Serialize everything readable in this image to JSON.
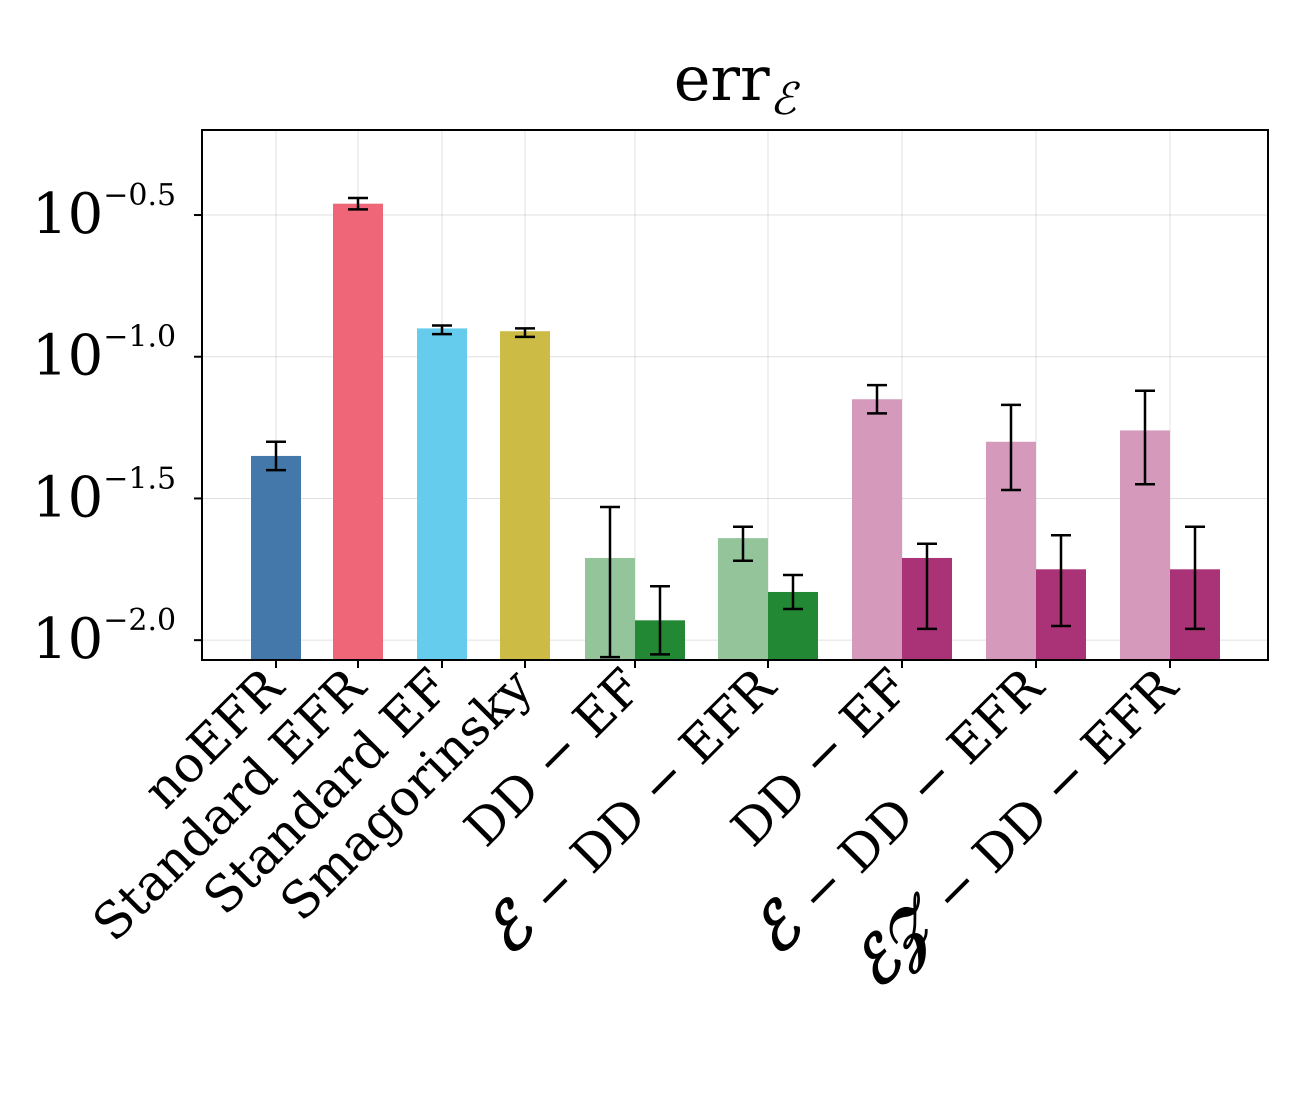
{
  "chart_data": {
    "type": "bar",
    "title": "err",
    "title_subscript": "ℰ",
    "yscale": "log10",
    "ylim_log10": [
      -2.07,
      -0.2
    ],
    "yticks": [
      {
        "exp": -2.0,
        "base": "10",
        "sup": "−2.0"
      },
      {
        "exp": -1.5,
        "base": "10",
        "sup": "−1.5"
      },
      {
        "exp": -1.0,
        "base": "10",
        "sup": "−1.0"
      },
      {
        "exp": -0.5,
        "base": "10",
        "sup": "−0.5"
      }
    ],
    "grid": true,
    "categories": [
      {
        "prefix": "",
        "label": "noEFR"
      },
      {
        "prefix": "",
        "label": "Standard EFR"
      },
      {
        "prefix": "",
        "label": "Standard EF"
      },
      {
        "prefix": "",
        "label": "Smagorinsky"
      },
      {
        "prefix": "",
        "label": "DD − EF"
      },
      {
        "prefix": "ℰ",
        "label": "− DD − EFR"
      },
      {
        "prefix": "",
        "label": "DD − EF"
      },
      {
        "prefix": "ℰ",
        "label": "− DD − EFR"
      },
      {
        "prefix": "ℰ𝒵",
        "label": "− DD − EFR"
      }
    ],
    "bars": [
      {
        "group": 0,
        "slot": "single",
        "log10": -1.35,
        "err_low": -1.4,
        "err_high": -1.3,
        "color": "#4477aa"
      },
      {
        "group": 1,
        "slot": "single",
        "log10": -0.46,
        "err_low": -0.48,
        "err_high": -0.44,
        "color": "#ee6677"
      },
      {
        "group": 2,
        "slot": "single",
        "log10": -0.9,
        "err_low": -0.92,
        "err_high": -0.89,
        "color": "#66ccee"
      },
      {
        "group": 3,
        "slot": "single",
        "log10": -0.91,
        "err_low": -0.93,
        "err_high": -0.9,
        "color": "#ccbb44"
      },
      {
        "group": 4,
        "slot": "left",
        "log10": -1.71,
        "err_low": -2.06,
        "err_high": -1.53,
        "color": "#93c49a"
      },
      {
        "group": 4,
        "slot": "right",
        "log10": -1.93,
        "err_low": -2.05,
        "err_high": -1.81,
        "color": "#228833"
      },
      {
        "group": 5,
        "slot": "left",
        "log10": -1.64,
        "err_low": -1.72,
        "err_high": -1.6,
        "color": "#93c49a"
      },
      {
        "group": 5,
        "slot": "right",
        "log10": -1.83,
        "err_low": -1.89,
        "err_high": -1.77,
        "color": "#228833"
      },
      {
        "group": 6,
        "slot": "left",
        "log10": -1.15,
        "err_low": -1.2,
        "err_high": -1.1,
        "color": "#d499bb"
      },
      {
        "group": 6,
        "slot": "right",
        "log10": -1.71,
        "err_low": -1.96,
        "err_high": -1.66,
        "color": "#aa3377"
      },
      {
        "group": 7,
        "slot": "left",
        "log10": -1.3,
        "err_low": -1.47,
        "err_high": -1.17,
        "color": "#d499bb"
      },
      {
        "group": 7,
        "slot": "right",
        "log10": -1.75,
        "err_low": -1.95,
        "err_high": -1.63,
        "color": "#aa3377"
      },
      {
        "group": 8,
        "slot": "left",
        "log10": -1.26,
        "err_low": -1.45,
        "err_high": -1.12,
        "color": "#d499bb"
      },
      {
        "group": 8,
        "slot": "right",
        "log10": -1.75,
        "err_low": -1.96,
        "err_high": -1.6,
        "color": "#aa3377"
      }
    ]
  }
}
